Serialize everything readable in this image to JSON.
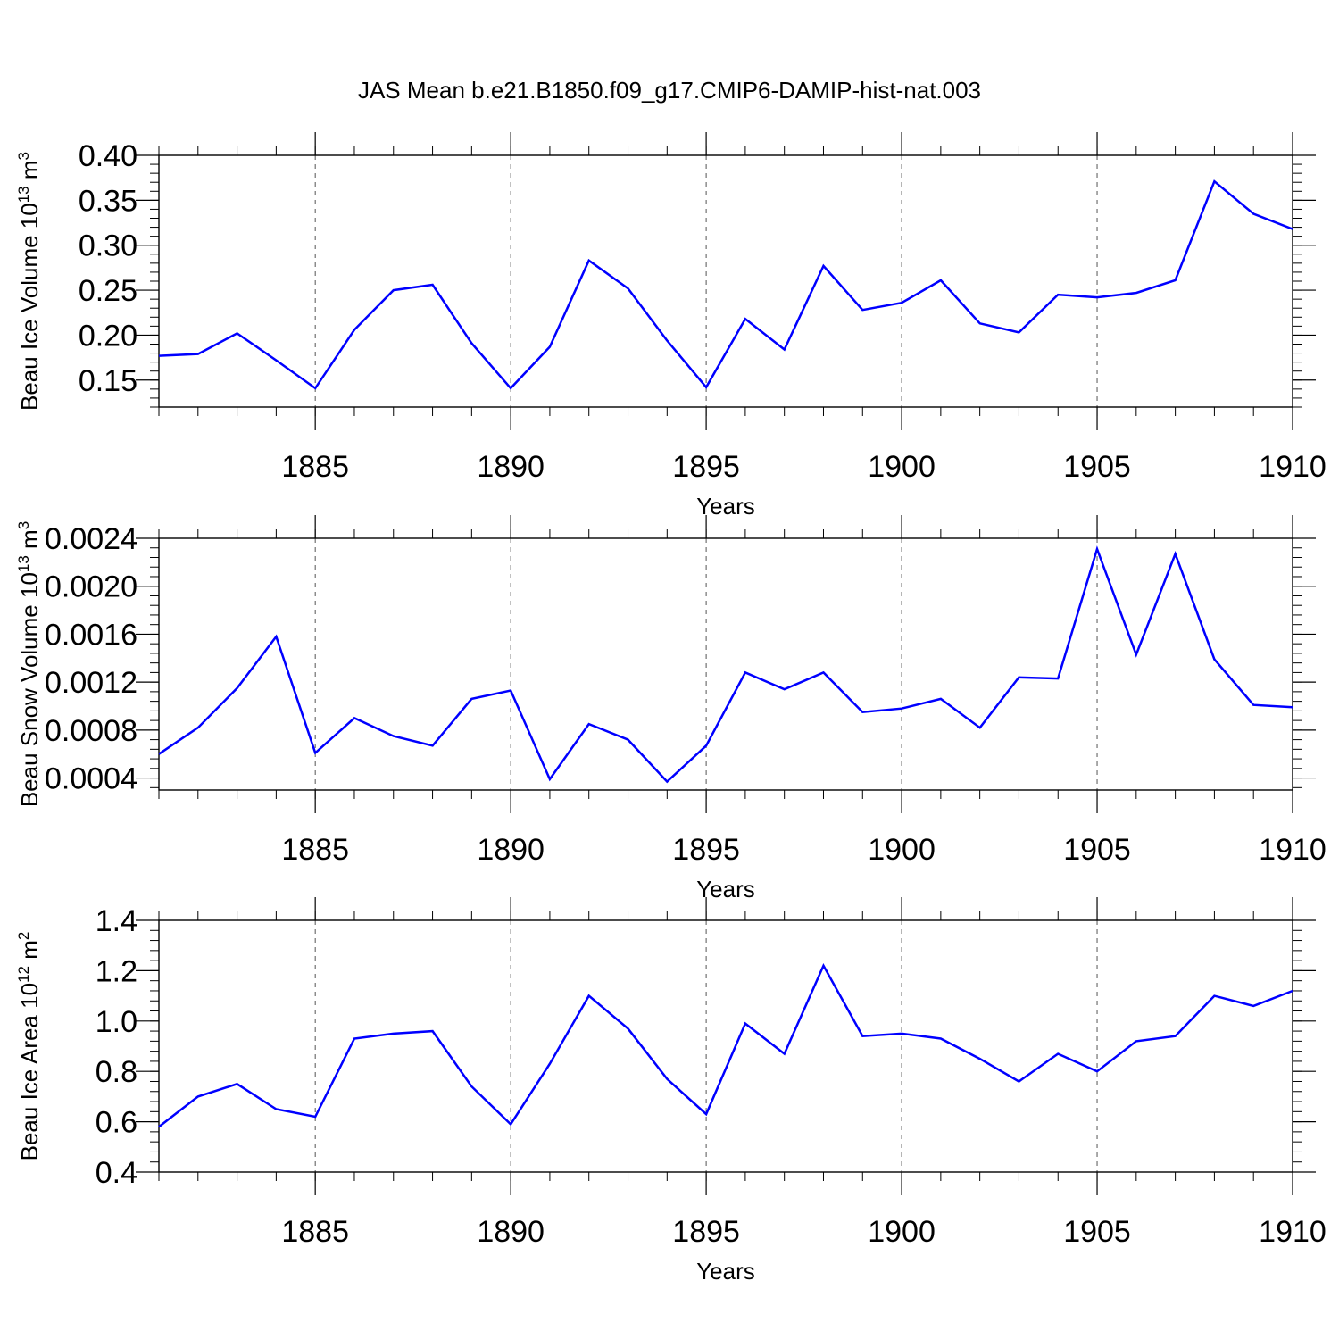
{
  "figure_title": "JAS Mean b.e21.B1850.f09_g17.CMIP6-DAMIP-hist-nat.003",
  "line_color": "#0000ff",
  "chart_data": [
    {
      "type": "line",
      "title": "JAS Mean b.e21.B1850.f09_g17.CMIP6-DAMIP-hist-nat.003",
      "xlabel": "Years",
      "ylabel_main": "Beau Ice Volume 10",
      "ylabel_sup": "13",
      "ylabel_unit": "m",
      "ylabel_unit_sup": "3",
      "xlim": [
        1881,
        1910
      ],
      "ylim": [
        0.12,
        0.4
      ],
      "xticks": [
        1885,
        1890,
        1895,
        1900,
        1905,
        1910
      ],
      "xtick_labels": [
        "1885",
        "1890",
        "1895",
        "1900",
        "1905",
        "1910"
      ],
      "yticks": [
        0.15,
        0.2,
        0.25,
        0.3,
        0.35,
        0.4
      ],
      "ytick_labels": [
        "0.15",
        "0.20",
        "0.25",
        "0.30",
        "0.35",
        "0.40"
      ],
      "grid": "vertical dashed",
      "x": [
        1881,
        1882,
        1883,
        1884,
        1885,
        1886,
        1887,
        1888,
        1889,
        1890,
        1891,
        1892,
        1893,
        1894,
        1895,
        1896,
        1897,
        1898,
        1899,
        1900,
        1901,
        1902,
        1903,
        1904,
        1905,
        1906,
        1907,
        1908,
        1909,
        1910
      ],
      "values": [
        0.177,
        0.179,
        0.202,
        0.172,
        0.141,
        0.206,
        0.25,
        0.256,
        0.191,
        0.141,
        0.187,
        0.283,
        0.252,
        0.194,
        0.142,
        0.218,
        0.184,
        0.277,
        0.228,
        0.236,
        0.261,
        0.213,
        0.203,
        0.245,
        0.242,
        0.247,
        0.261,
        0.371,
        0.335,
        0.318
      ]
    },
    {
      "type": "line",
      "xlabel": "Years",
      "ylabel_main": "Beau Snow Volume 10",
      "ylabel_sup": "13",
      "ylabel_unit": "m",
      "ylabel_unit_sup": "3",
      "xlim": [
        1881,
        1910
      ],
      "ylim": [
        0.0003,
        0.0024
      ],
      "xticks": [
        1885,
        1890,
        1895,
        1900,
        1905,
        1910
      ],
      "xtick_labels": [
        "1885",
        "1890",
        "1895",
        "1900",
        "1905",
        "1910"
      ],
      "yticks": [
        0.0004,
        0.0008,
        0.0012,
        0.0016,
        0.002,
        0.0024
      ],
      "ytick_labels": [
        "0.0004",
        "0.0008",
        "0.0012",
        "0.0016",
        "0.0020",
        "0.0024"
      ],
      "grid": "vertical dashed",
      "x": [
        1881,
        1882,
        1883,
        1884,
        1885,
        1886,
        1887,
        1888,
        1889,
        1890,
        1891,
        1892,
        1893,
        1894,
        1895,
        1896,
        1897,
        1898,
        1899,
        1900,
        1901,
        1902,
        1903,
        1904,
        1905,
        1906,
        1907,
        1908,
        1909,
        1910
      ],
      "values": [
        0.0006,
        0.00082,
        0.00115,
        0.00158,
        0.00061,
        0.0009,
        0.00075,
        0.00067,
        0.00106,
        0.00113,
        0.00039,
        0.00085,
        0.00072,
        0.00037,
        0.00067,
        0.00128,
        0.00114,
        0.00128,
        0.00095,
        0.00098,
        0.00106,
        0.00082,
        0.00124,
        0.00123,
        0.00231,
        0.00143,
        0.00227,
        0.00139,
        0.00101,
        0.00099
      ]
    },
    {
      "type": "line",
      "xlabel": "Years",
      "ylabel_main": "Beau Ice Area 10",
      "ylabel_sup": "12",
      "ylabel_unit": "m",
      "ylabel_unit_sup": "2",
      "xlim": [
        1881,
        1910
      ],
      "ylim": [
        0.4,
        1.4
      ],
      "xticks": [
        1885,
        1890,
        1895,
        1900,
        1905,
        1910
      ],
      "xtick_labels": [
        "1885",
        "1890",
        "1895",
        "1900",
        "1905",
        "1910"
      ],
      "yticks": [
        0.4,
        0.6,
        0.8,
        1.0,
        1.2,
        1.4
      ],
      "ytick_labels": [
        "0.4",
        "0.6",
        "0.8",
        "1.0",
        "1.2",
        "1.4"
      ],
      "grid": "vertical dashed",
      "x": [
        1881,
        1882,
        1883,
        1884,
        1885,
        1886,
        1887,
        1888,
        1889,
        1890,
        1891,
        1892,
        1893,
        1894,
        1895,
        1896,
        1897,
        1898,
        1899,
        1900,
        1901,
        1902,
        1903,
        1904,
        1905,
        1906,
        1907,
        1908,
        1909,
        1910
      ],
      "values": [
        0.58,
        0.7,
        0.75,
        0.65,
        0.62,
        0.93,
        0.95,
        0.96,
        0.74,
        0.59,
        0.83,
        1.1,
        0.97,
        0.77,
        0.63,
        0.99,
        0.87,
        1.22,
        0.94,
        0.95,
        0.93,
        0.85,
        0.76,
        0.87,
        0.8,
        0.92,
        0.94,
        1.1,
        1.06,
        1.12
      ]
    }
  ]
}
